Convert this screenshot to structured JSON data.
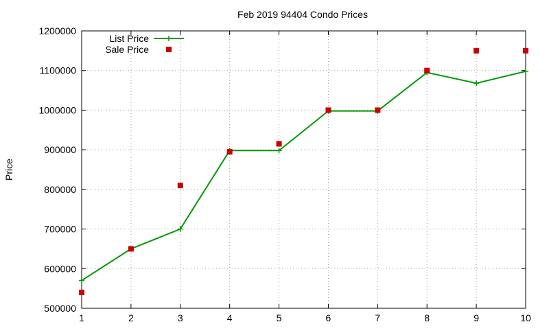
{
  "chart_data": {
    "type": "line",
    "title": "Feb 2019 94404 Condo Prices",
    "xlabel": "",
    "ylabel": "Price",
    "xlim": [
      1,
      10
    ],
    "ylim": [
      500000,
      1200000
    ],
    "x_ticks": [
      "1",
      "2",
      "3",
      "4",
      "5",
      "6",
      "7",
      "8",
      "9",
      "10"
    ],
    "y_ticks": [
      "500000",
      "600000",
      "700000",
      "800000",
      "900000",
      "1000000",
      "1100000",
      "1200000"
    ],
    "grid": true,
    "legend_position": "top-left",
    "series": [
      {
        "name": "List Price",
        "style": "linespoints",
        "marker": "plus",
        "color": "#009900",
        "x": [
          1,
          2,
          3,
          4,
          5,
          6,
          7,
          8,
          9,
          10
        ],
        "values": [
          570000,
          650000,
          700000,
          898000,
          898000,
          998000,
          998000,
          1095000,
          1068000,
          1098000
        ]
      },
      {
        "name": "Sale Price",
        "style": "points",
        "marker": "square",
        "color": "#cc0000",
        "x": [
          1,
          2,
          3,
          4,
          5,
          6,
          7,
          8,
          9,
          10
        ],
        "values": [
          540000,
          650000,
          810000,
          895000,
          915000,
          1000000,
          1000000,
          1100000,
          1150000,
          1150000
        ]
      }
    ]
  }
}
